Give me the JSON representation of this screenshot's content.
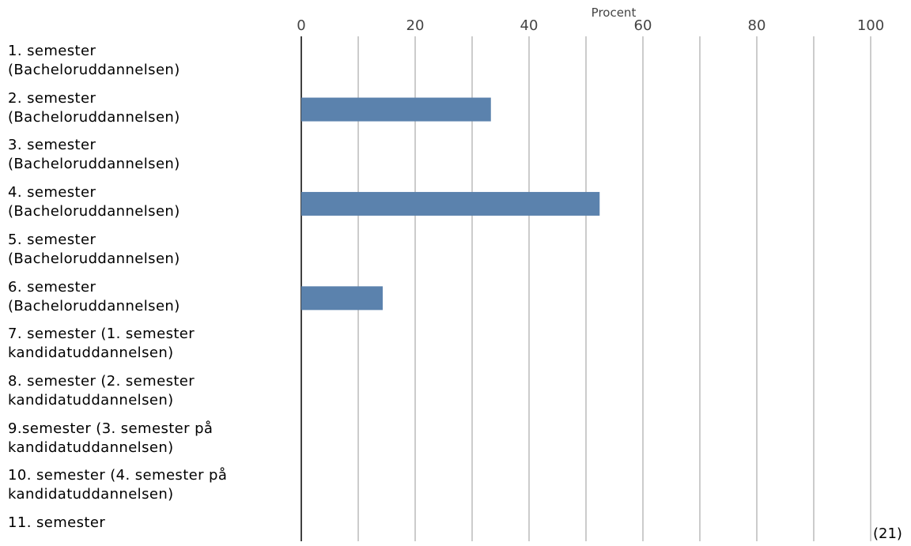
{
  "chart_data": {
    "type": "bar",
    "orientation": "horizontal",
    "xlabel": "Procent",
    "xlim": [
      0,
      100
    ],
    "xticks": [
      0,
      20,
      40,
      60,
      80,
      100
    ],
    "categories": [
      "1. semester\n(Bacheloruddannelsen)",
      "2. semester\n(Bacheloruddannelsen)",
      "3. semester\n(Bacheloruddannelsen)",
      "4. semester\n(Bacheloruddannelsen)",
      "5. semester\n(Bacheloruddannelsen)",
      "6. semester\n(Bacheloruddannelsen)",
      "7. semester (1. semester\nkandidatuddannelsen)",
      "8. semester (2. semester\nkandidatuddannelsen)",
      "9.semester (3. semester på\nkandidatuddannelsen)",
      "10. semester (4. semester på\nkandidatuddannelsen)",
      "11. semester"
    ],
    "values": [
      0,
      33.3,
      0,
      52.4,
      0,
      14.3,
      0,
      0,
      0,
      0,
      0
    ],
    "bar_color": "#5b82ad",
    "grid": true,
    "note": "(21)"
  }
}
